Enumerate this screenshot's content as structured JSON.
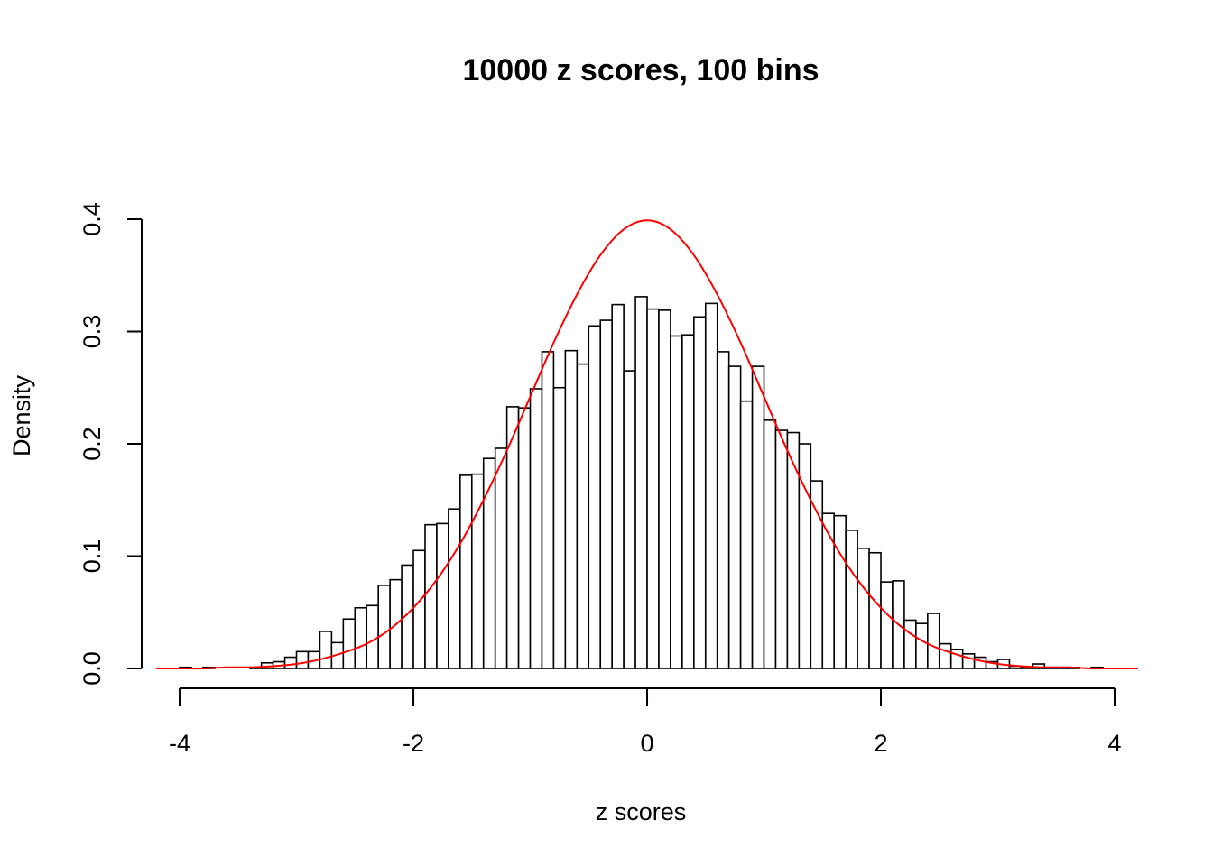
{
  "chart_data": {
    "type": "histogram",
    "title": "10000 z scores, 100 bins",
    "x_label": "z scores",
    "y_label": "Density",
    "bins": [
      -4.0,
      -3.9,
      -3.8,
      -3.7,
      -3.6,
      -3.5,
      -3.4,
      -3.3,
      -3.2,
      -3.1,
      -3.0,
      -2.9,
      -2.8,
      -2.7,
      -2.6,
      -2.5,
      -2.4,
      -2.3,
      -2.2,
      -2.1,
      -2.0,
      -1.9,
      -1.8,
      -1.7,
      -1.6,
      -1.5,
      -1.4,
      -1.3,
      -1.2,
      -1.1,
      -1.0,
      -0.9,
      -0.8,
      -0.7,
      -0.6,
      -0.5,
      -0.4,
      -0.3,
      -0.2,
      -0.1,
      0.0,
      0.1,
      0.2,
      0.3,
      0.4,
      0.5,
      0.6,
      0.7,
      0.8,
      0.9,
      1.0,
      1.1,
      1.2,
      1.3,
      1.4,
      1.5,
      1.6,
      1.7,
      1.8,
      1.9,
      2.0,
      2.1,
      2.2,
      2.3,
      2.4,
      2.5,
      2.6,
      2.7,
      2.8,
      2.9,
      3.0,
      3.1,
      3.2,
      3.3,
      3.4,
      3.5,
      3.6,
      3.7,
      3.8,
      3.9
    ],
    "values": [
      0.001,
      0,
      0.001,
      0,
      0,
      0,
      0.001,
      0.005,
      0.006,
      0.01,
      0.015,
      0.015,
      0.033,
      0.023,
      0.044,
      0.054,
      0.056,
      0.074,
      0.079,
      0.092,
      0.105,
      0.128,
      0.129,
      0.142,
      0.172,
      0.173,
      0.187,
      0.196,
      0.233,
      0.232,
      0.249,
      0.282,
      0.25,
      0.283,
      0.271,
      0.305,
      0.31,
      0.324,
      0.265,
      0.331,
      0.32,
      0.319,
      0.296,
      0.297,
      0.313,
      0.325,
      0.282,
      0.269,
      0.238,
      0.269,
      0.221,
      0.212,
      0.21,
      0.2,
      0.167,
      0.138,
      0.136,
      0.123,
      0.107,
      0.103,
      0.077,
      0.078,
      0.043,
      0.04,
      0.049,
      0.022,
      0.017,
      0.013,
      0.01,
      0.006,
      0.008,
      0.002,
      0.001,
      0.004,
      0.001,
      0.001,
      0.001,
      0,
      0.001
    ],
    "color": "#ffffff",
    "edge_color": "#000000",
    "curve": {
      "color": "#ff0000",
      "x": [
        -4.2,
        -4.0,
        -3.8,
        -3.6,
        -3.4,
        -3.2,
        -3.0,
        -2.8,
        -2.6,
        -2.4,
        -2.2,
        -2.0,
        -1.8,
        -1.6,
        -1.4,
        -1.2,
        -1.0,
        -0.8,
        -0.6,
        -0.4,
        -0.2,
        0.0,
        0.2,
        0.4,
        0.6,
        0.8,
        1.0,
        1.2,
        1.4,
        1.6,
        1.8,
        2.0,
        2.2,
        2.4,
        2.6,
        2.8,
        3.0,
        3.2,
        3.4,
        3.6,
        3.8,
        4.0,
        4.2
      ],
      "values": [
        0,
        0,
        0,
        0.001,
        0.001,
        0.002,
        0.004,
        0.008,
        0.014,
        0.022,
        0.035,
        0.054,
        0.079,
        0.111,
        0.15,
        0.194,
        0.242,
        0.29,
        0.333,
        0.368,
        0.391,
        0.399,
        0.391,
        0.368,
        0.333,
        0.29,
        0.242,
        0.194,
        0.15,
        0.111,
        0.079,
        0.054,
        0.035,
        0.022,
        0.014,
        0.008,
        0.004,
        0.002,
        0.001,
        0.001,
        0,
        0,
        0
      ]
    },
    "xlim": [
      -4.33,
      4.22
    ],
    "ylim": [
      0,
      0.4
    ],
    "xticks": [
      -4,
      -2,
      0,
      2,
      4
    ],
    "yticks": [
      {
        "value": 0,
        "label": "0.0"
      },
      0.1,
      0.2,
      0.3,
      0.4
    ]
  }
}
